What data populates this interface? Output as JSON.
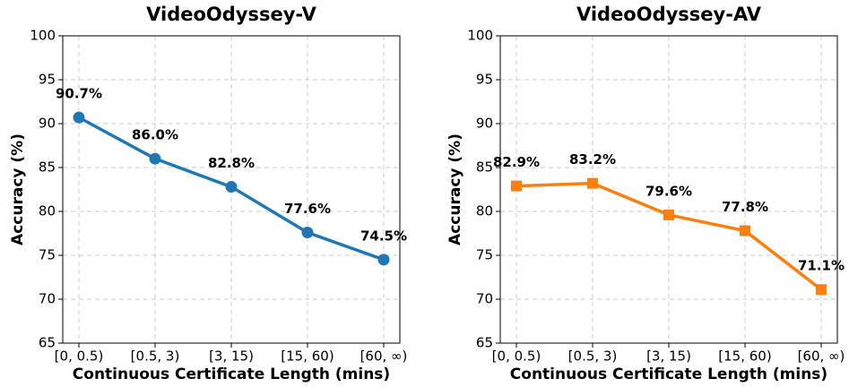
{
  "chart_data": [
    {
      "type": "line",
      "title": "VideoOdyssey-V",
      "xlabel": "Continuous Certificate Length (mins)",
      "ylabel": "Accuracy (%)",
      "categories": [
        "[0, 0.5)",
        "[0.5, 3)",
        "[3, 15)",
        "[15, 60)",
        "[60, ∞)"
      ],
      "values": [
        90.7,
        86.0,
        82.8,
        77.6,
        74.5
      ],
      "value_labels": [
        "90.7%",
        "86.0%",
        "82.8%",
        "77.6%",
        "74.5%"
      ],
      "color": "#1f77b4",
      "marker": "circle",
      "ylim": [
        65,
        100
      ],
      "yticks": [
        65,
        70,
        75,
        80,
        85,
        90,
        95,
        100
      ],
      "grid": true
    },
    {
      "type": "line",
      "title": "VideoOdyssey-AV",
      "xlabel": "Continuous Certificate Length (mins)",
      "ylabel": "Accuracy (%)",
      "categories": [
        "[0, 0.5)",
        "[0.5, 3)",
        "[3, 15)",
        "[15, 60)",
        "[60, ∞)"
      ],
      "values": [
        82.9,
        83.2,
        79.6,
        77.8,
        71.1
      ],
      "value_labels": [
        "82.9%",
        "83.2%",
        "79.6%",
        "77.8%",
        "71.1%"
      ],
      "color": "#ff7f0e",
      "marker": "square",
      "ylim": [
        65,
        100
      ],
      "yticks": [
        65,
        70,
        75,
        80,
        85,
        90,
        95,
        100
      ],
      "grid": true
    }
  ]
}
